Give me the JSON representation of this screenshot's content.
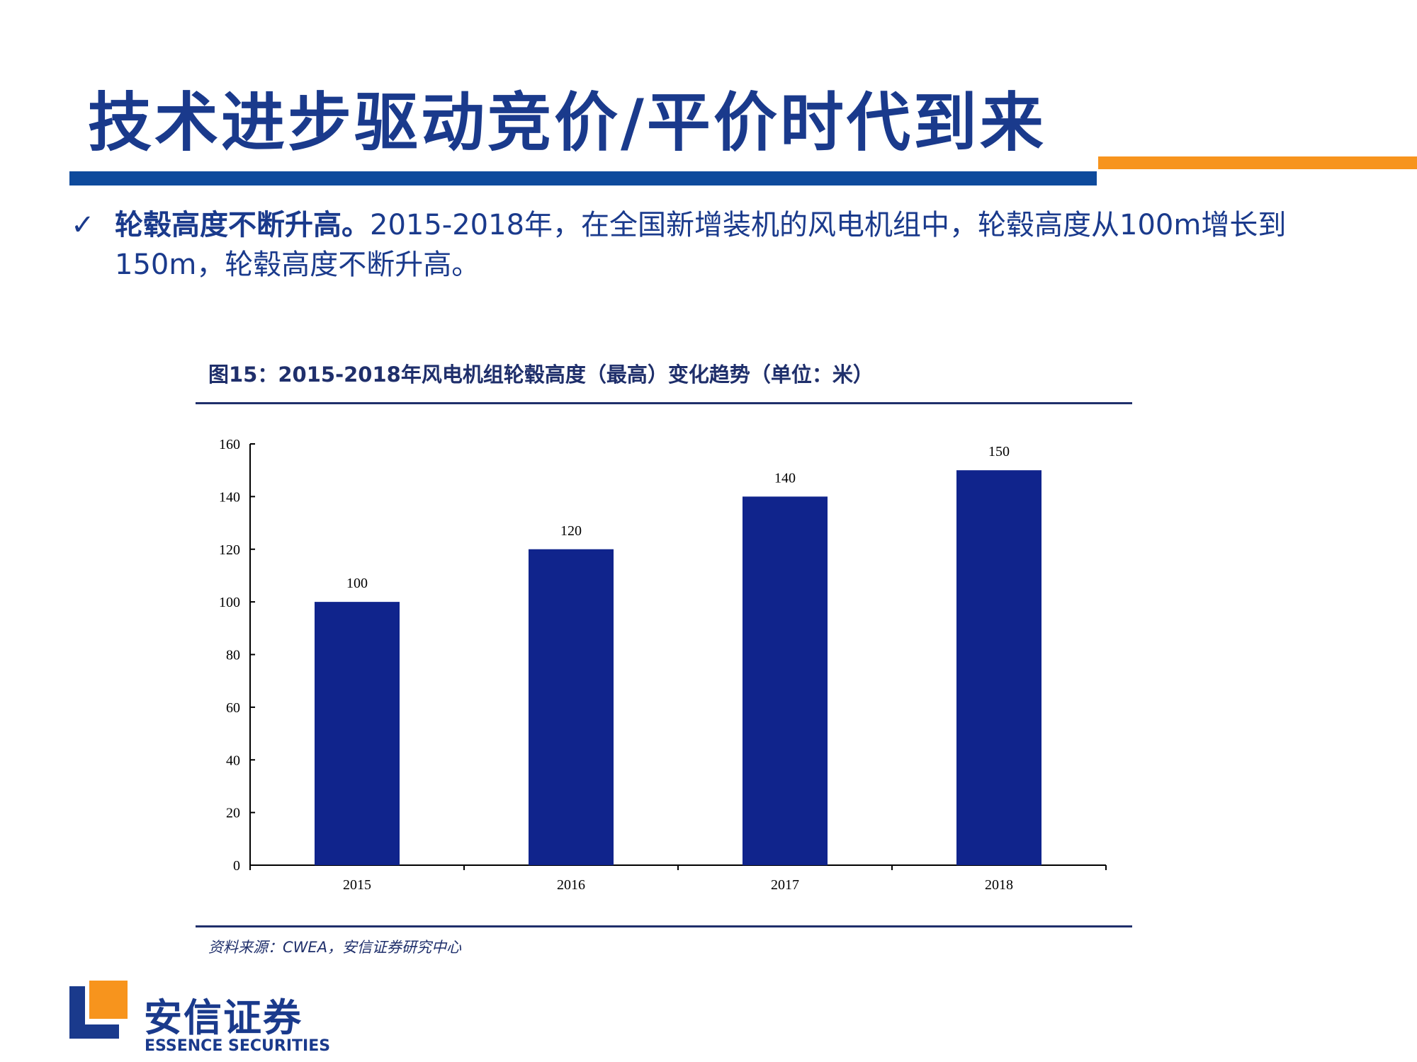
{
  "slide": {
    "title": "技术进步驱动竞价/平价时代到来",
    "bullet": {
      "check_symbol": "✓",
      "lead": "轮毂高度不断升高。",
      "body": "2015-2018年，在全国新增装机的风电机组中，轮毂高度从100m增长到150m，轮毂高度不断升高。"
    },
    "colors": {
      "brand_blue": "#0e4a9c",
      "accent_orange": "#f7941d",
      "bar_fill": "#10248c",
      "text_navy": "#1f2f6b"
    }
  },
  "chart_data": {
    "type": "bar",
    "title": "图15：2015-2018年风电机组轮毂高度（最高）变化趋势（单位：米）",
    "categories": [
      "2015",
      "2016",
      "2017",
      "2018"
    ],
    "values": [
      100,
      120,
      140,
      150
    ],
    "data_labels": [
      "100",
      "120",
      "140",
      "150"
    ],
    "yticks": [
      "0",
      "20",
      "40",
      "60",
      "80",
      "100",
      "120",
      "140",
      "160"
    ],
    "ylim": [
      0,
      160
    ],
    "xlabel": "",
    "ylabel": "",
    "grid": false,
    "legend": "none"
  },
  "source": "资料来源：CWEA，安信证券研究中心",
  "logo": {
    "cn": "安信证券",
    "en": "ESSENCE SECURITIES"
  }
}
